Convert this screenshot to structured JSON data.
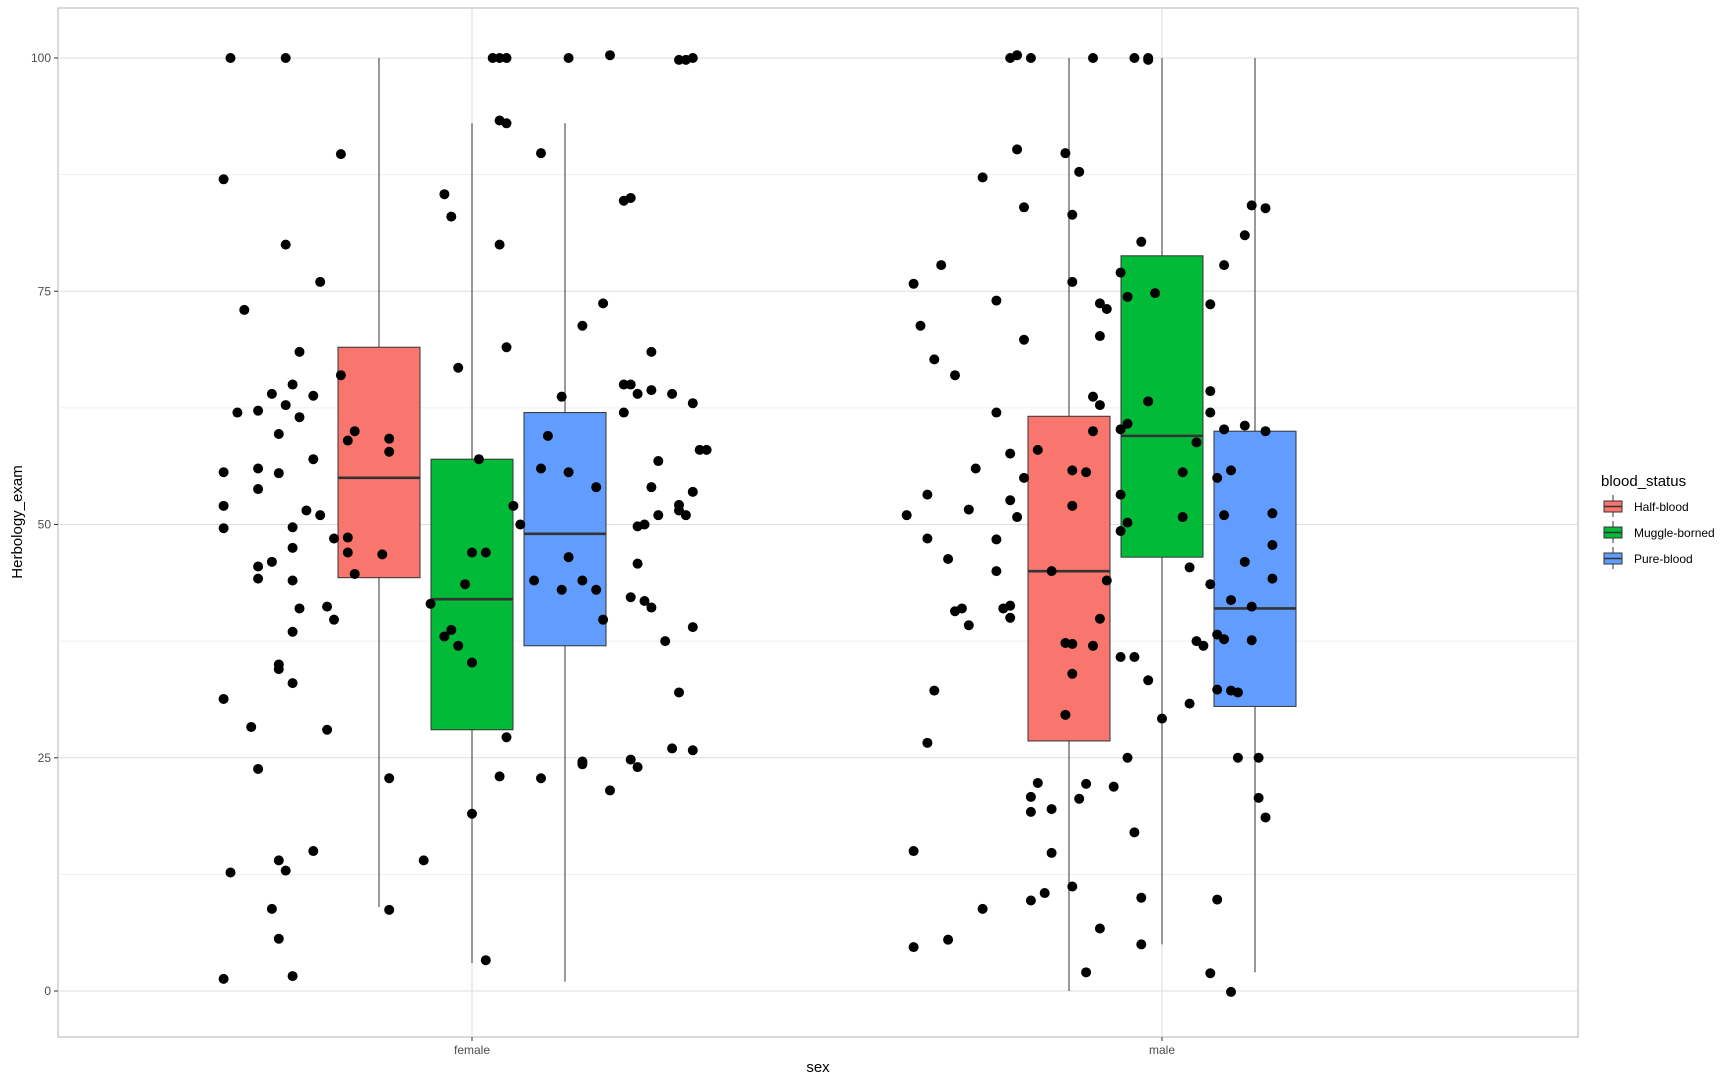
{
  "chart_data": {
    "type": "boxplot",
    "xlabel": "sex",
    "ylabel": "Herbology_exam",
    "categories": [
      "female",
      "male"
    ],
    "ylim": [
      -5,
      105
    ],
    "yticks": [
      0,
      25,
      50,
      75,
      100
    ],
    "grid": true,
    "legend": {
      "title": "blood_status",
      "position": "right",
      "entries": [
        {
          "label": "Half-blood",
          "color": "#F8766D"
        },
        {
          "label": "Muggle-borned",
          "color": "#00BA38"
        },
        {
          "label": "Pure-blood",
          "color": "#619CFF"
        }
      ]
    },
    "series": [
      {
        "name": "Half-blood",
        "color": "#F8766D",
        "boxes": [
          {
            "category": "female",
            "min": 9,
            "q1": 44.3,
            "median": 55,
            "q3": 69,
            "max": 100
          },
          {
            "category": "male",
            "min": 0,
            "q1": 26.8,
            "median": 45,
            "q3": 61.6,
            "max": 100
          }
        ]
      },
      {
        "name": "Muggle-borned",
        "color": "#00BA38",
        "boxes": [
          {
            "category": "female",
            "min": 3,
            "q1": 28,
            "median": 42,
            "q3": 57,
            "max": 93
          },
          {
            "category": "male",
            "min": 5,
            "q1": 46.5,
            "median": 59.5,
            "q3": 78.8,
            "max": 100
          }
        ]
      },
      {
        "name": "Pure-blood",
        "color": "#619CFF",
        "boxes": [
          {
            "category": "female",
            "min": 1,
            "q1": 37,
            "median": 49,
            "q3": 62,
            "max": 93
          },
          {
            "category": "male",
            "min": 2,
            "q1": 30.5,
            "median": 41,
            "q3": 60,
            "max": 100
          }
        ]
      }
    ],
    "points": [
      {
        "x": -0.35,
        "y": 100
      },
      {
        "x": -0.27,
        "y": 100
      },
      {
        "x": -0.36,
        "y": 87
      },
      {
        "x": -0.19,
        "y": 89.7
      },
      {
        "x": -0.27,
        "y": 80
      },
      {
        "x": -0.22,
        "y": 76
      },
      {
        "x": -0.33,
        "y": 73
      },
      {
        "x": -0.25,
        "y": 68.5
      },
      {
        "x": -0.19,
        "y": 66
      },
      {
        "x": -0.29,
        "y": 64
      },
      {
        "x": -0.23,
        "y": 63.8
      },
      {
        "x": -0.26,
        "y": 65
      },
      {
        "x": -0.34,
        "y": 62
      },
      {
        "x": -0.31,
        "y": 62.2
      },
      {
        "x": -0.27,
        "y": 62.8
      },
      {
        "x": -0.25,
        "y": 61.5
      },
      {
        "x": -0.28,
        "y": 59.7
      },
      {
        "x": -0.17,
        "y": 60
      },
      {
        "x": -0.18,
        "y": 59
      },
      {
        "x": -0.23,
        "y": 57
      },
      {
        "x": -0.36,
        "y": 55.6
      },
      {
        "x": -0.31,
        "y": 56
      },
      {
        "x": -0.28,
        "y": 55.5
      },
      {
        "x": -0.31,
        "y": 53.8
      },
      {
        "x": -0.36,
        "y": 52
      },
      {
        "x": -0.24,
        "y": 51.5
      },
      {
        "x": -0.22,
        "y": 51
      },
      {
        "x": -0.36,
        "y": 49.6
      },
      {
        "x": -0.26,
        "y": 49.7
      },
      {
        "x": -0.2,
        "y": 48.5
      },
      {
        "x": -0.18,
        "y": 48.6
      },
      {
        "x": -0.26,
        "y": 47.5
      },
      {
        "x": -0.18,
        "y": 47
      },
      {
        "x": -0.29,
        "y": 46
      },
      {
        "x": -0.31,
        "y": 45.5
      },
      {
        "x": -0.31,
        "y": 44.2
      },
      {
        "x": -0.26,
        "y": 44
      },
      {
        "x": -0.17,
        "y": 44.7
      },
      {
        "x": -0.21,
        "y": 41.2
      },
      {
        "x": -0.25,
        "y": 41
      },
      {
        "x": -0.2,
        "y": 39.8
      },
      {
        "x": -0.26,
        "y": 38.5
      },
      {
        "x": -0.28,
        "y": 35
      },
      {
        "x": -0.28,
        "y": 34.5
      },
      {
        "x": -0.26,
        "y": 33
      },
      {
        "x": -0.36,
        "y": 31.3
      },
      {
        "x": -0.32,
        "y": 28.3
      },
      {
        "x": -0.21,
        "y": 28
      },
      {
        "x": -0.31,
        "y": 23.8
      },
      {
        "x": -0.23,
        "y": 15
      },
      {
        "x": -0.28,
        "y": 14
      },
      {
        "x": -0.27,
        "y": 12.9
      },
      {
        "x": -0.35,
        "y": 12.7
      },
      {
        "x": -0.29,
        "y": 8.8
      },
      {
        "x": -0.28,
        "y": 5.6
      },
      {
        "x": -0.26,
        "y": 1.6
      },
      {
        "x": -0.36,
        "y": 1.3
      },
      {
        "x": 0.03,
        "y": 100
      },
      {
        "x": 0.04,
        "y": 100
      },
      {
        "x": 0.05,
        "y": 100
      },
      {
        "x": 0.04,
        "y": 93.3
      },
      {
        "x": 0.05,
        "y": 93
      },
      {
        "x": -0.04,
        "y": 85.4
      },
      {
        "x": -0.03,
        "y": 83
      },
      {
        "x": 0.04,
        "y": 80
      },
      {
        "x": 0.05,
        "y": 69
      },
      {
        "x": -0.02,
        "y": 66.8
      },
      {
        "x": -0.12,
        "y": 59.2
      },
      {
        "x": -0.12,
        "y": 57.8
      },
      {
        "x": 0.01,
        "y": 57
      },
      {
        "x": 0.06,
        "y": 52
      },
      {
        "x": 0.07,
        "y": 50
      },
      {
        "x": 0.0,
        "y": 47
      },
      {
        "x": 0.02,
        "y": 47
      },
      {
        "x": -0.13,
        "y": 46.8
      },
      {
        "x": -0.01,
        "y": 43.6
      },
      {
        "x": -0.06,
        "y": 41.5
      },
      {
        "x": -0.03,
        "y": 38.7
      },
      {
        "x": -0.04,
        "y": 38
      },
      {
        "x": -0.02,
        "y": 37
      },
      {
        "x": 0.0,
        "y": 35.2
      },
      {
        "x": 0.05,
        "y": 27.2
      },
      {
        "x": -0.12,
        "y": 22.8
      },
      {
        "x": 0.04,
        "y": 23
      },
      {
        "x": 0.1,
        "y": 22.8
      },
      {
        "x": 0.0,
        "y": 19
      },
      {
        "x": -0.07,
        "y": 14
      },
      {
        "x": -0.12,
        "y": 8.7
      },
      {
        "x": 0.02,
        "y": 3.3
      },
      {
        "x": 0.09,
        "y": 44
      },
      {
        "x": 0.1,
        "y": 56
      },
      {
        "x": 0.11,
        "y": 59.5
      },
      {
        "x": 0.14,
        "y": 100
      },
      {
        "x": 0.2,
        "y": 100.3
      },
      {
        "x": 0.1,
        "y": 89.8
      },
      {
        "x": 0.22,
        "y": 84.7
      },
      {
        "x": 0.23,
        "y": 85
      },
      {
        "x": 0.19,
        "y": 73.7
      },
      {
        "x": 0.16,
        "y": 71.3
      },
      {
        "x": 0.26,
        "y": 68.5
      },
      {
        "x": 0.22,
        "y": 65
      },
      {
        "x": 0.23,
        "y": 65
      },
      {
        "x": 0.26,
        "y": 64.4
      },
      {
        "x": 0.29,
        "y": 64
      },
      {
        "x": 0.24,
        "y": 64
      },
      {
        "x": 0.13,
        "y": 63.7
      },
      {
        "x": 0.22,
        "y": 62
      },
      {
        "x": 0.32,
        "y": 63
      },
      {
        "x": 0.33,
        "y": 58
      },
      {
        "x": 0.34,
        "y": 58
      },
      {
        "x": 0.27,
        "y": 56.8
      },
      {
        "x": 0.14,
        "y": 55.6
      },
      {
        "x": 0.18,
        "y": 54
      },
      {
        "x": 0.26,
        "y": 54
      },
      {
        "x": 0.32,
        "y": 53.5
      },
      {
        "x": 0.3,
        "y": 52.1
      },
      {
        "x": 0.3,
        "y": 51.5
      },
      {
        "x": 0.31,
        "y": 51
      },
      {
        "x": 0.27,
        "y": 51
      },
      {
        "x": 0.24,
        "y": 49.8
      },
      {
        "x": 0.25,
        "y": 50
      },
      {
        "x": 0.14,
        "y": 46.5
      },
      {
        "x": 0.24,
        "y": 45.8
      },
      {
        "x": 0.16,
        "y": 44
      },
      {
        "x": 0.13,
        "y": 43
      },
      {
        "x": 0.18,
        "y": 43
      },
      {
        "x": 0.23,
        "y": 42.2
      },
      {
        "x": 0.25,
        "y": 41.8
      },
      {
        "x": 0.26,
        "y": 41.1
      },
      {
        "x": 0.19,
        "y": 39.8
      },
      {
        "x": 0.32,
        "y": 39
      },
      {
        "x": 0.28,
        "y": 37.5
      },
      {
        "x": 0.3,
        "y": 32
      },
      {
        "x": 0.29,
        "y": 26
      },
      {
        "x": 0.32,
        "y": 25.8
      },
      {
        "x": 0.23,
        "y": 24.8
      },
      {
        "x": 0.16,
        "y": 24.3
      },
      {
        "x": 0.16,
        "y": 24.6
      },
      {
        "x": 0.24,
        "y": 24
      },
      {
        "x": 0.2,
        "y": 21.5
      },
      {
        "x": 0.3,
        "y": 99.8
      },
      {
        "x": 0.32,
        "y": 100
      },
      {
        "x": 0.31,
        "y": 99.8
      },
      {
        "x": 0.64,
        "y": 75.8
      },
      {
        "x": 0.68,
        "y": 77.8
      },
      {
        "x": 0.65,
        "y": 71.3
      },
      {
        "x": 0.67,
        "y": 67.7
      },
      {
        "x": 0.7,
        "y": 66
      },
      {
        "x": 0.74,
        "y": 87.2
      },
      {
        "x": 0.76,
        "y": 74
      },
      {
        "x": 0.78,
        "y": 100
      },
      {
        "x": 0.79,
        "y": 100.3
      },
      {
        "x": 0.81,
        "y": 100
      },
      {
        "x": 0.79,
        "y": 90.2
      },
      {
        "x": 0.8,
        "y": 84
      },
      {
        "x": 0.8,
        "y": 69.8
      },
      {
        "x": 0.76,
        "y": 62
      },
      {
        "x": 0.78,
        "y": 57.6
      },
      {
        "x": 0.82,
        "y": 58
      },
      {
        "x": 0.73,
        "y": 56
      },
      {
        "x": 0.8,
        "y": 55
      },
      {
        "x": 0.66,
        "y": 53.2
      },
      {
        "x": 0.78,
        "y": 52.6
      },
      {
        "x": 0.72,
        "y": 51.6
      },
      {
        "x": 0.63,
        "y": 51
      },
      {
        "x": 0.79,
        "y": 50.8
      },
      {
        "x": 0.76,
        "y": 48.4
      },
      {
        "x": 0.66,
        "y": 48.5
      },
      {
        "x": 0.69,
        "y": 46.3
      },
      {
        "x": 0.76,
        "y": 45
      },
      {
        "x": 0.84,
        "y": 45
      },
      {
        "x": 0.71,
        "y": 41
      },
      {
        "x": 0.77,
        "y": 41
      },
      {
        "x": 0.78,
        "y": 41.3
      },
      {
        "x": 0.7,
        "y": 40.7
      },
      {
        "x": 0.78,
        "y": 40
      },
      {
        "x": 0.72,
        "y": 39.2
      },
      {
        "x": 0.67,
        "y": 32.2
      },
      {
        "x": 0.66,
        "y": 26.6
      },
      {
        "x": 0.82,
        "y": 22.3
      },
      {
        "x": 0.81,
        "y": 20.8
      },
      {
        "x": 0.81,
        "y": 19.2
      },
      {
        "x": 0.84,
        "y": 19.5
      },
      {
        "x": 0.64,
        "y": 15
      },
      {
        "x": 0.84,
        "y": 14.8
      },
      {
        "x": 0.83,
        "y": 10.5
      },
      {
        "x": 0.81,
        "y": 9.7
      },
      {
        "x": 0.74,
        "y": 8.8
      },
      {
        "x": 0.69,
        "y": 5.5
      },
      {
        "x": 0.64,
        "y": 4.7
      },
      {
        "x": 0.9,
        "y": 100
      },
      {
        "x": 0.96,
        "y": 100
      },
      {
        "x": 0.98,
        "y": 100
      },
      {
        "x": 0.98,
        "y": 99.8
      },
      {
        "x": 0.86,
        "y": 89.8
      },
      {
        "x": 0.88,
        "y": 87.8
      },
      {
        "x": 0.87,
        "y": 83.2
      },
      {
        "x": 0.97,
        "y": 80.3
      },
      {
        "x": 0.87,
        "y": 76
      },
      {
        "x": 0.94,
        "y": 77
      },
      {
        "x": 0.99,
        "y": 74.8
      },
      {
        "x": 0.95,
        "y": 74.4
      },
      {
        "x": 0.91,
        "y": 73.7
      },
      {
        "x": 0.92,
        "y": 73.1
      },
      {
        "x": 0.91,
        "y": 70.2
      },
      {
        "x": 0.9,
        "y": 63.7
      },
      {
        "x": 0.91,
        "y": 62.8
      },
      {
        "x": 0.98,
        "y": 63.2
      },
      {
        "x": 0.95,
        "y": 60.8
      },
      {
        "x": 0.94,
        "y": 60.2
      },
      {
        "x": 0.9,
        "y": 60
      },
      {
        "x": 0.87,
        "y": 55.8
      },
      {
        "x": 0.89,
        "y": 55.6
      },
      {
        "x": 0.94,
        "y": 53.2
      },
      {
        "x": 0.87,
        "y": 52
      },
      {
        "x": 0.95,
        "y": 50.2
      },
      {
        "x": 0.94,
        "y": 49.3
      },
      {
        "x": 0.92,
        "y": 44
      },
      {
        "x": 0.91,
        "y": 39.9
      },
      {
        "x": 0.86,
        "y": 37.3
      },
      {
        "x": 0.87,
        "y": 37.2
      },
      {
        "x": 0.9,
        "y": 37
      },
      {
        "x": 0.94,
        "y": 35.8
      },
      {
        "x": 0.96,
        "y": 35.8
      },
      {
        "x": 0.87,
        "y": 34
      },
      {
        "x": 0.98,
        "y": 33.3
      },
      {
        "x": 0.86,
        "y": 29.6
      },
      {
        "x": 0.95,
        "y": 25
      },
      {
        "x": 0.89,
        "y": 22.2
      },
      {
        "x": 0.93,
        "y": 21.9
      },
      {
        "x": 0.88,
        "y": 20.6
      },
      {
        "x": 0.96,
        "y": 17
      },
      {
        "x": 0.87,
        "y": 11.2
      },
      {
        "x": 0.97,
        "y": 10
      },
      {
        "x": 0.91,
        "y": 6.7
      },
      {
        "x": 0.97,
        "y": 5
      },
      {
        "x": 0.89,
        "y": 2
      },
      {
        "x": 1.0,
        "y": 29.2
      },
      {
        "x": 1.13,
        "y": 84.2
      },
      {
        "x": 1.15,
        "y": 83.9
      },
      {
        "x": 1.12,
        "y": 81
      },
      {
        "x": 1.09,
        "y": 77.8
      },
      {
        "x": 1.07,
        "y": 73.6
      },
      {
        "x": 1.07,
        "y": 64.3
      },
      {
        "x": 1.07,
        "y": 62
      },
      {
        "x": 1.12,
        "y": 60.6
      },
      {
        "x": 1.09,
        "y": 60.2
      },
      {
        "x": 1.15,
        "y": 60
      },
      {
        "x": 1.05,
        "y": 58.8
      },
      {
        "x": 1.03,
        "y": 55.6
      },
      {
        "x": 1.1,
        "y": 55.8
      },
      {
        "x": 1.08,
        "y": 55
      },
      {
        "x": 1.16,
        "y": 51.2
      },
      {
        "x": 1.09,
        "y": 51
      },
      {
        "x": 1.03,
        "y": 50.8
      },
      {
        "x": 1.16,
        "y": 47.8
      },
      {
        "x": 1.12,
        "y": 46
      },
      {
        "x": 1.04,
        "y": 45.4
      },
      {
        "x": 1.16,
        "y": 44.2
      },
      {
        "x": 1.07,
        "y": 43.6
      },
      {
        "x": 1.1,
        "y": 41.9
      },
      {
        "x": 1.13,
        "y": 41.2
      },
      {
        "x": 1.08,
        "y": 38.2
      },
      {
        "x": 1.13,
        "y": 37.6
      },
      {
        "x": 1.05,
        "y": 37.5
      },
      {
        "x": 1.06,
        "y": 37
      },
      {
        "x": 1.09,
        "y": 37.7
      },
      {
        "x": 1.08,
        "y": 32.3
      },
      {
        "x": 1.1,
        "y": 32.2
      },
      {
        "x": 1.11,
        "y": 32
      },
      {
        "x": 1.04,
        "y": 30.8
      },
      {
        "x": 1.11,
        "y": 25
      },
      {
        "x": 1.14,
        "y": 25
      },
      {
        "x": 1.14,
        "y": 20.7
      },
      {
        "x": 1.15,
        "y": 18.6
      },
      {
        "x": 1.08,
        "y": 9.8
      },
      {
        "x": 1.07,
        "y": 1.9
      },
      {
        "x": 1.1,
        "y": -0.1
      }
    ]
  }
}
